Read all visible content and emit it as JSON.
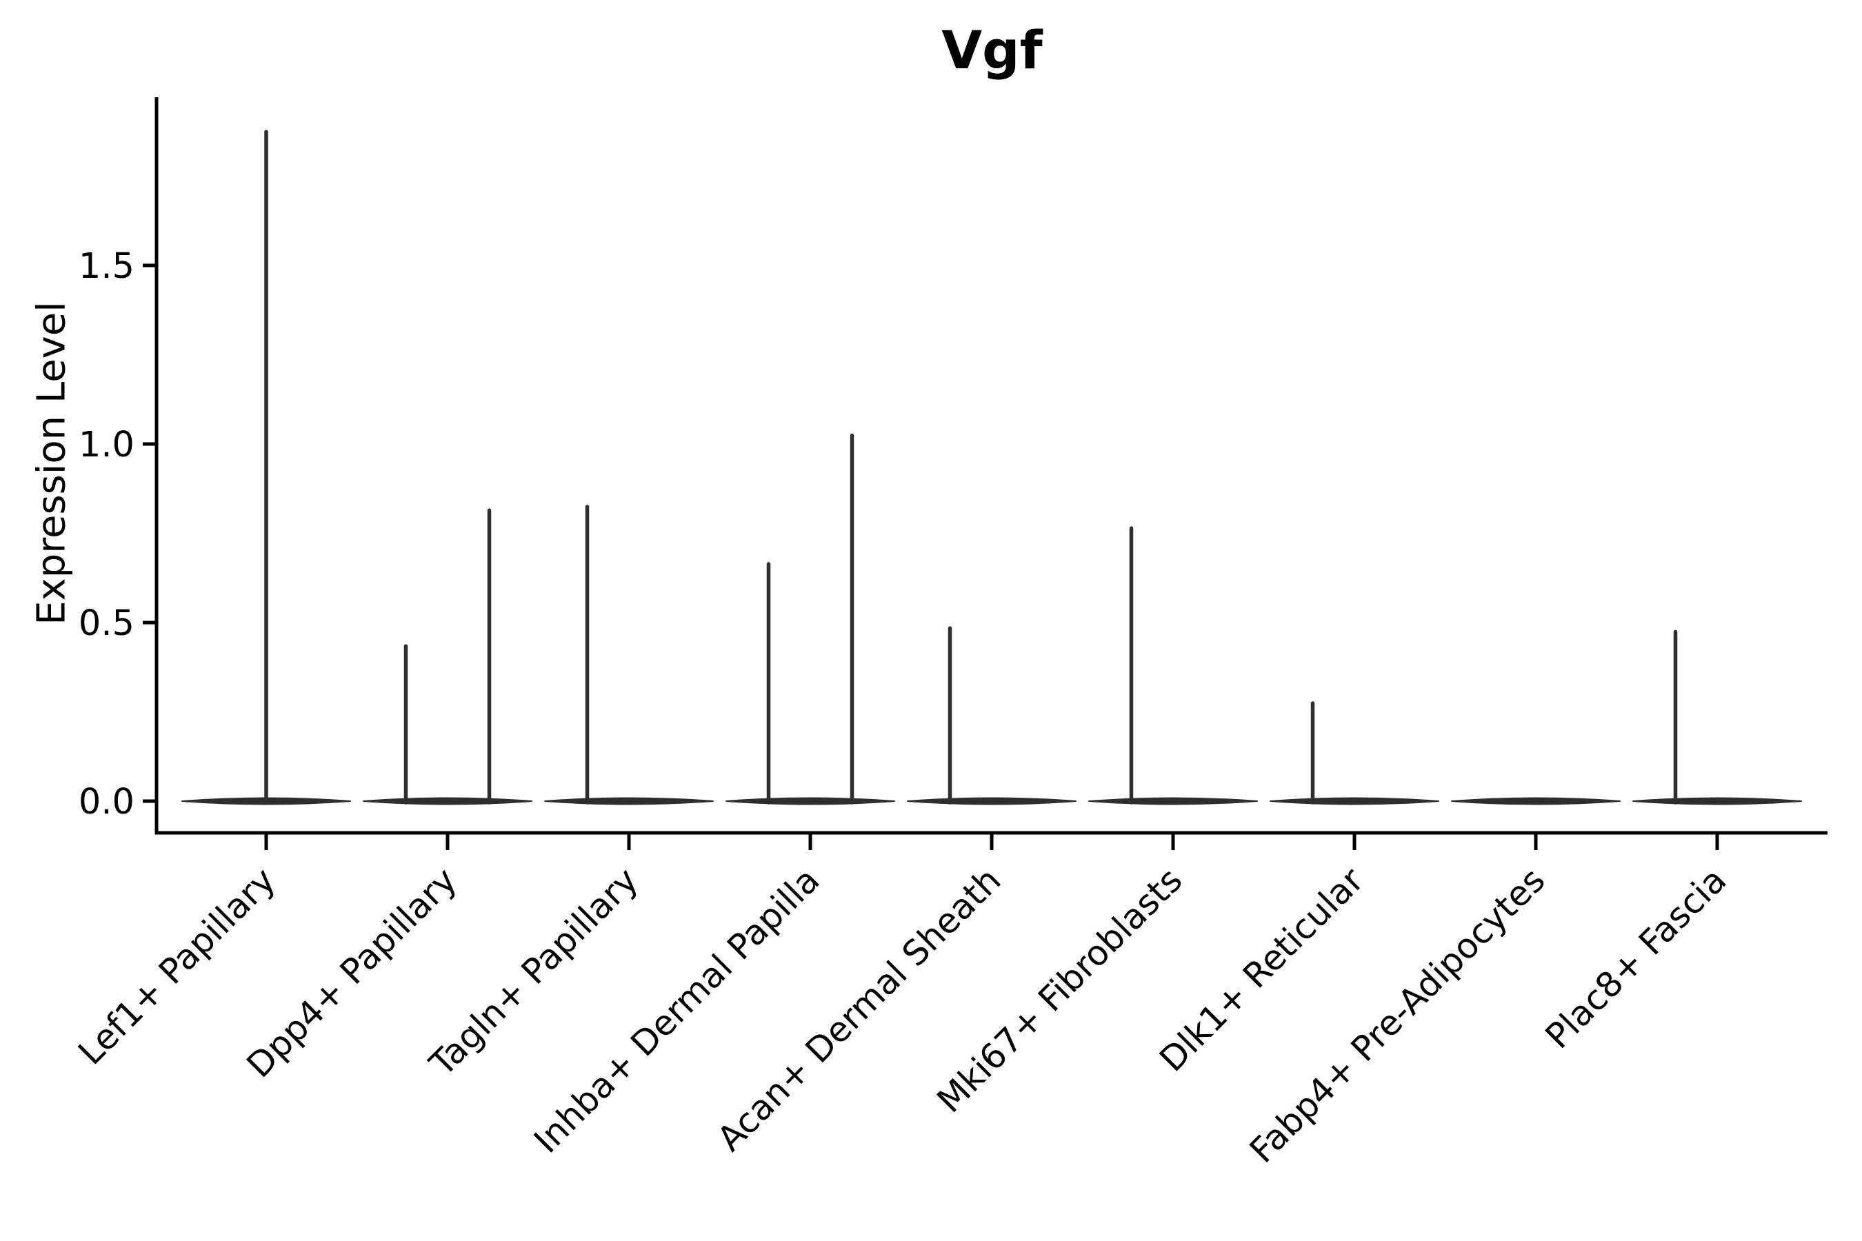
{
  "chart_data": {
    "type": "violin",
    "title": "Vgf",
    "xlabel": "",
    "ylabel": "Expression Level",
    "grid": false,
    "legend": "none",
    "background_color": "#ffffff",
    "violin_color": "#2e2e2e",
    "axis_color": "#000000",
    "ylim": [
      -0.09,
      1.97
    ],
    "yticks": [
      {
        "value": 0.0,
        "label": "0.0"
      },
      {
        "value": 0.5,
        "label": "0.5"
      },
      {
        "value": 1.0,
        "label": "1.0"
      },
      {
        "value": 1.5,
        "label": "1.5"
      }
    ],
    "categories": [
      {
        "label": "Lef1+ Papillary",
        "violins": [
          {
            "position": "center",
            "max_expression": 1.88
          }
        ]
      },
      {
        "label": "Dpp4+ Papillary",
        "violins": [
          {
            "position": "left",
            "max_expression": 0.44
          },
          {
            "position": "right",
            "max_expression": 0.82
          }
        ]
      },
      {
        "label": "Tagln+ Papillary",
        "violins": [
          {
            "position": "left",
            "max_expression": 0.83
          },
          {
            "position": "right",
            "max_expression": 0.0
          }
        ]
      },
      {
        "label": "Inhba+ Dermal Papilla",
        "violins": [
          {
            "position": "left",
            "max_expression": 0.67
          },
          {
            "position": "right",
            "max_expression": 1.03
          }
        ]
      },
      {
        "label": "Acan+ Dermal Sheath",
        "violins": [
          {
            "position": "left",
            "max_expression": 0.49
          },
          {
            "position": "right",
            "max_expression": 0.0
          }
        ]
      },
      {
        "label": "Mki67+ Fibroblasts",
        "violins": [
          {
            "position": "left",
            "max_expression": 0.77
          },
          {
            "position": "right",
            "max_expression": 0.0
          }
        ]
      },
      {
        "label": "Dlk1+ Reticular",
        "violins": [
          {
            "position": "left",
            "max_expression": 0.28
          },
          {
            "position": "right",
            "max_expression": 0.0
          }
        ]
      },
      {
        "label": "Fabp4+ Pre-Adipocytes",
        "violins": [
          {
            "position": "center",
            "max_expression": 0.0
          }
        ]
      },
      {
        "label": "Plac8+ Fascia",
        "violins": [
          {
            "position": "left",
            "max_expression": 0.48
          },
          {
            "position": "right",
            "max_expression": 0.0
          }
        ]
      }
    ]
  }
}
